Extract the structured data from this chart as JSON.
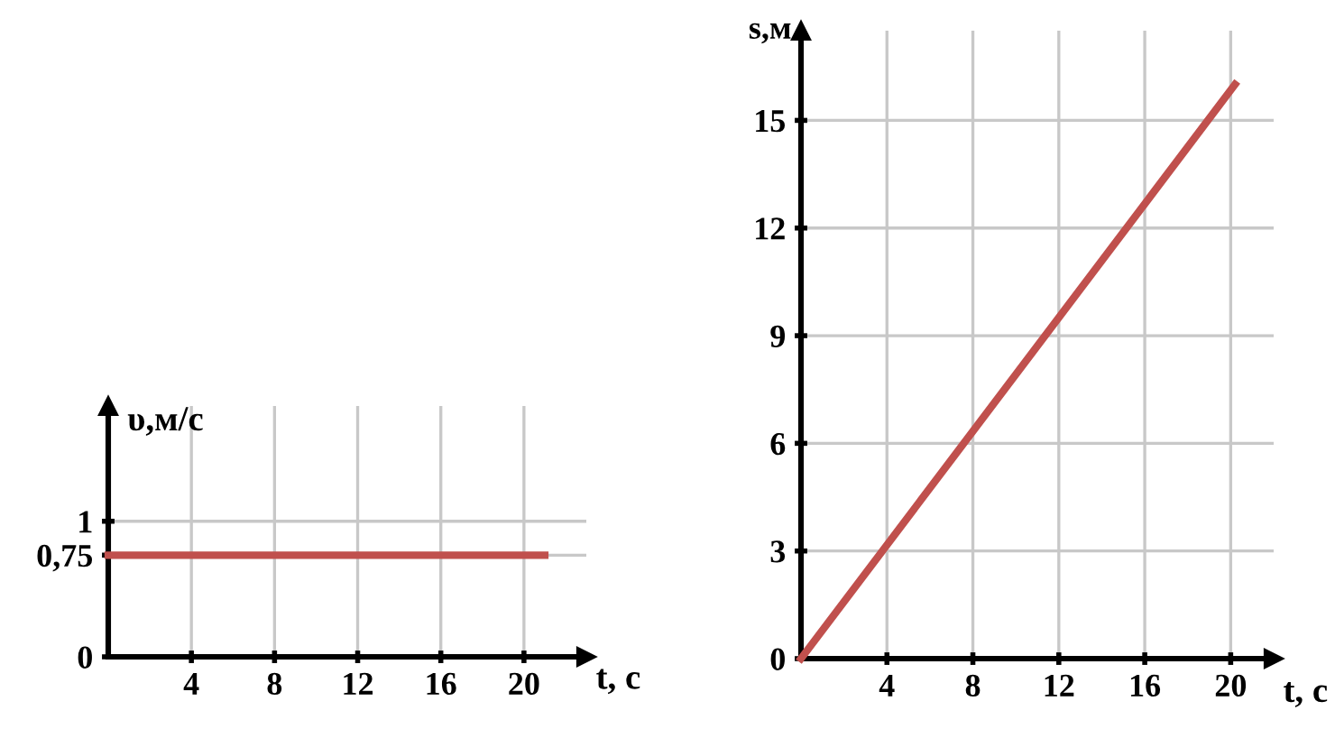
{
  "chart_data": [
    {
      "type": "line",
      "xlabel": "t, с",
      "ylabel": "υ,м/с",
      "series": [
        {
          "color": "#c0504d",
          "x": [
            0,
            21
          ],
          "values": [
            0.75,
            0.75
          ]
        }
      ],
      "xlim": [
        0,
        23
      ],
      "ylim": [
        0,
        1.85
      ],
      "xticks": [
        4,
        8,
        12,
        16,
        20
      ],
      "yticks": [
        0,
        {
          "value": 0.75,
          "label": "0,75"
        },
        1
      ],
      "grid": true,
      "line_style": "solid"
    },
    {
      "type": "line",
      "xlabel": "t, с",
      "ylabel": "s,м",
      "series": [
        {
          "color": "#c0504d",
          "x": [
            0,
            20.2
          ],
          "values": [
            0,
            16
          ]
        }
      ],
      "xlim": [
        0,
        22
      ],
      "ylim": [
        0,
        17.5
      ],
      "xticks": [
        4,
        8,
        12,
        16,
        20
      ],
      "yticks": [
        0,
        3,
        6,
        9,
        12,
        15
      ],
      "grid": true,
      "line_style": "solid"
    }
  ]
}
